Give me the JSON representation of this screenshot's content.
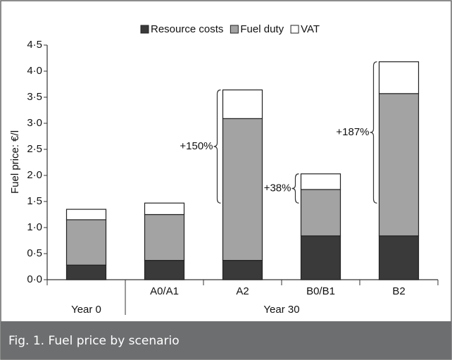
{
  "chart_data": {
    "type": "stacked_bar",
    "categories": [
      null,
      "A0/A1",
      "A2",
      "B0/B1",
      "B2"
    ],
    "groups": [
      "Year 0",
      "Year 30"
    ],
    "ylabel": "Fuel price: €/l",
    "series": [
      {
        "name": "Resource costs",
        "color": "#3a3a3a",
        "values": [
          0.28,
          0.37,
          0.37,
          0.84,
          0.84
        ]
      },
      {
        "name": "Fuel duty",
        "color": "#a3a3a3",
        "values": [
          0.87,
          0.88,
          2.72,
          0.89,
          2.73
        ]
      },
      {
        "name": "VAT",
        "color": "#ffffff",
        "values": [
          0.2,
          0.22,
          0.55,
          0.3,
          0.61
        ]
      }
    ],
    "ylim": [
      0,
      4.5
    ],
    "yticks": [
      {
        "value": 0,
        "label": "0·0"
      },
      {
        "value": 0.5,
        "label": "0·5"
      },
      {
        "value": 1,
        "label": "1·0"
      },
      {
        "value": 1.5,
        "label": "1·5"
      },
      {
        "value": 2,
        "label": "2·0"
      },
      {
        "value": 2.5,
        "label": "2·5"
      },
      {
        "value": 3,
        "label": "3·0"
      },
      {
        "value": 3.5,
        "label": "3·5"
      },
      {
        "value": 4,
        "label": "4·0"
      },
      {
        "value": 4.5,
        "label": "4·5"
      }
    ],
    "annotations": [
      "+150%",
      "+38%",
      "+187%"
    ],
    "legend": "top"
  },
  "caption": "Fig. 1. Fuel price by scenario"
}
